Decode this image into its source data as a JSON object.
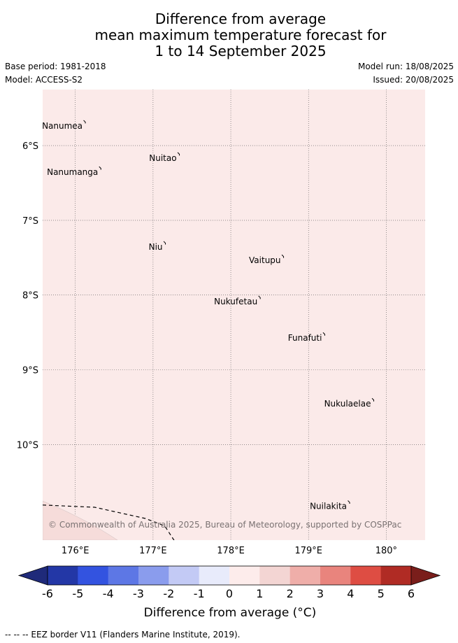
{
  "title": {
    "line1": "Difference from average",
    "line2": "mean maximum temperature forecast for",
    "line3": "1 to 14 September 2025"
  },
  "meta": {
    "base_period": "Base period: 1981-2018",
    "model": "Model: ACCESS-S2",
    "model_run": "Model run: 18/08/2025",
    "issued": "Issued: 20/08/2025"
  },
  "map": {
    "lon_range": [
      175.58,
      180.5
    ],
    "lat_range": [
      -5.25,
      -11.28
    ],
    "fill_color": "#fbeae9",
    "lat_ticks": [
      {
        "value": -6,
        "label": "6°S"
      },
      {
        "value": -7,
        "label": "7°S"
      },
      {
        "value": -8,
        "label": "8°S"
      },
      {
        "value": -9,
        "label": "9°S"
      },
      {
        "value": -10,
        "label": "10°S"
      }
    ],
    "lon_ticks": [
      {
        "value": 176,
        "label": "176°E"
      },
      {
        "value": 177,
        "label": "177°E"
      },
      {
        "value": 178,
        "label": "178°E"
      },
      {
        "value": 179,
        "label": "179°E"
      },
      {
        "value": 180,
        "label": "180°"
      }
    ],
    "places": [
      {
        "name": "Nanumea",
        "lon": 176.12,
        "lat": -5.68
      },
      {
        "name": "Nuitao",
        "lon": 177.33,
        "lat": -6.11
      },
      {
        "name": "Nanumanga",
        "lon": 176.32,
        "lat": -6.3
      },
      {
        "name": "Niu",
        "lon": 177.15,
        "lat": -7.3
      },
      {
        "name": "Vaitupu",
        "lon": 178.67,
        "lat": -7.48
      },
      {
        "name": "Nukufetau",
        "lon": 178.37,
        "lat": -8.03
      },
      {
        "name": "Funafuti",
        "lon": 179.2,
        "lat": -8.52
      },
      {
        "name": "Nukulaelae",
        "lon": 179.83,
        "lat": -9.4
      },
      {
        "name": "Nuilakita",
        "lon": 179.52,
        "lat": -10.77
      }
    ],
    "eez_border": [
      [
        175.58,
        -10.81
      ],
      [
        176.25,
        -10.84
      ],
      [
        176.9,
        -10.99
      ],
      [
        177.15,
        -11.09
      ],
      [
        177.5,
        -11.65
      ],
      [
        177.95,
        -12.16
      ]
    ],
    "copyright": "© Commonwealth of Australia 2025, Bureau of Meteorology, supported by COSPPac"
  },
  "colorbar": {
    "labels": [
      "-6",
      "-5",
      "-4",
      "-3",
      "-2",
      "-1",
      "0",
      "1",
      "2",
      "3",
      "4",
      "5",
      "6"
    ],
    "colors": [
      "#2337a6",
      "#3353e0",
      "#5d77e5",
      "#8a9ced",
      "#c3caf5",
      "#e8ebfb",
      "#fdeceb",
      "#f3d5d3",
      "#efaea9",
      "#e9847d",
      "#de4d43",
      "#b02b24"
    ],
    "under_color": "#1f2a7a",
    "over_color": "#7a1e1b",
    "label": "Difference from average (°C)"
  },
  "footnote": "-- -- -- EEZ border V11 (Flanders Marine Institute, 2019)."
}
